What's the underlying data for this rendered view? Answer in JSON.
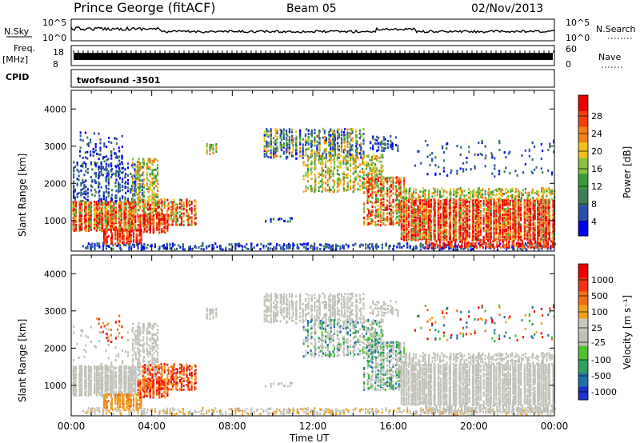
{
  "header": {
    "station": "Prince George (fitACF)",
    "beam": "Beam 05",
    "date": "02/Nov/2013"
  },
  "status_panel": {
    "nsky_label": "N.Sky",
    "nsearch_label": "N.Search",
    "nsky_ticks": [
      "10^5",
      "10^0"
    ],
    "nsearch_ticks": [
      "10^5",
      "10^0"
    ],
    "freq_label": "Freq.",
    "freq_unit": "[MHz]",
    "freq_ticks": [
      "18",
      "8"
    ],
    "nave_label": "Nave",
    "nave_ticks": [
      "60",
      "0"
    ],
    "cpid_label": "CPID",
    "cpid_value": "twofsound -3501"
  },
  "colors": {
    "power": [
      "#0000ee",
      "#2a4fa8",
      "#3f7d58",
      "#3a9a3a",
      "#88c040",
      "#f0c020",
      "#f08018",
      "#f04010",
      "#ee0000"
    ],
    "velocity": [
      "#2030c8",
      "#2070a8",
      "#30a060",
      "#50c030",
      "#c0c0b8",
      "#c8c8c0",
      "#f0a020",
      "#f07018",
      "#f03010",
      "#ee0000"
    ],
    "ground_scatter": "#c0c0b8"
  },
  "chart_data": [
    {
      "type": "heatmap",
      "name": "power",
      "ylabel": "Slant Range [km]",
      "yticks": [
        "4000",
        "3000",
        "2000",
        "1000"
      ],
      "ylim": [
        180,
        4500
      ],
      "colorbar_label": "Power [dB]",
      "colorbar_ticks": [
        "28",
        "24",
        "20",
        "16",
        "12",
        "8",
        "4"
      ],
      "colorbar_range": [
        0,
        32
      ]
    },
    {
      "type": "heatmap",
      "name": "velocity",
      "ylabel": "Slant Range [km]",
      "yticks": [
        "4000",
        "3000",
        "2000",
        "1000"
      ],
      "ylim": [
        180,
        4500
      ],
      "colorbar_label": "Velocity [m s⁻¹]",
      "colorbar_ticks": [
        "1000",
        "500",
        "100",
        "25",
        "-25",
        "-100",
        "-500",
        "-1000"
      ]
    }
  ],
  "xaxis": {
    "label": "Time UT",
    "ticks": [
      "00:00",
      "04:00",
      "08:00",
      "12:00",
      "16:00",
      "20:00",
      "00:00"
    ]
  }
}
